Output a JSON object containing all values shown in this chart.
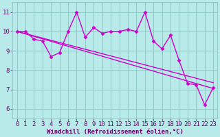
{
  "xlabel": "Windchill (Refroidissement éolien,°C)",
  "bg_color": "#b8eaea",
  "line_color": "#cc00cc",
  "grid_color": "#90c8c8",
  "text_color": "#660066",
  "x_data": [
    0,
    1,
    2,
    3,
    4,
    5,
    6,
    7,
    8,
    9,
    10,
    11,
    12,
    13,
    14,
    15,
    16,
    17,
    18,
    19,
    20,
    21,
    22,
    23
  ],
  "y_data": [
    10.0,
    10.0,
    9.6,
    9.5,
    8.7,
    8.9,
    10.0,
    11.0,
    9.7,
    10.2,
    9.9,
    10.0,
    10.0,
    10.1,
    10.0,
    11.0,
    9.5,
    9.1,
    9.8,
    8.5,
    7.3,
    7.25,
    6.2,
    7.1
  ],
  "trend1_x": [
    0,
    23
  ],
  "trend1_y": [
    10.0,
    7.05
  ],
  "trend2_x": [
    0,
    23
  ],
  "trend2_y": [
    10.0,
    7.35
  ],
  "xlim": [
    -0.5,
    23.5
  ],
  "ylim": [
    5.5,
    11.5
  ],
  "yticks": [
    6,
    7,
    8,
    9,
    10,
    11
  ],
  "xticks": [
    0,
    1,
    2,
    3,
    4,
    5,
    6,
    7,
    8,
    9,
    10,
    11,
    12,
    13,
    14,
    15,
    16,
    17,
    18,
    19,
    20,
    21,
    22,
    23
  ],
  "marker_size": 2.5,
  "line_width": 1.0,
  "font_size": 6.5,
  "xlabel_fontsize": 6.5
}
